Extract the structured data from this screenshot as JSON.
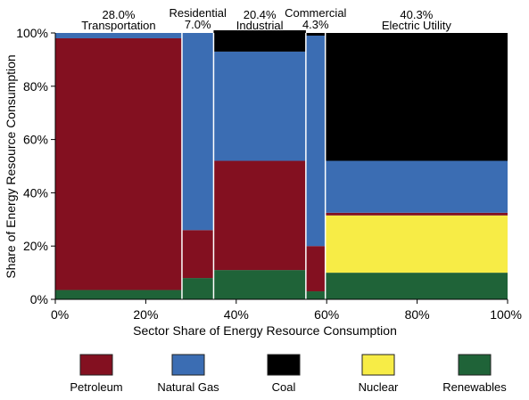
{
  "chart_data": {
    "type": "mosaic",
    "xlabel": "Sector Share of Energy Resource Consumption",
    "ylabel": "Share of Energy Resource Consumption",
    "xlim": [
      0,
      100
    ],
    "ylim": [
      0,
      100
    ],
    "x_ticks": [
      "0%",
      "20%",
      "40%",
      "60%",
      "80%",
      "100%"
    ],
    "y_ticks": [
      "0%",
      "20%",
      "40%",
      "60%",
      "80%",
      "100%"
    ],
    "grid": false,
    "legend_position": "bottom",
    "resources": [
      {
        "name": "Petroleum",
        "color": "#831020"
      },
      {
        "name": "Natural Gas",
        "color": "#3b6db3"
      },
      {
        "name": "Coal",
        "color": "#000000"
      },
      {
        "name": "Nuclear",
        "color": "#f7ec46"
      },
      {
        "name": "Renewables",
        "color": "#1f6338"
      }
    ],
    "sectors": [
      {
        "name": "Transportation",
        "share_label": "28.0%",
        "share": 28.0,
        "label_row": "low",
        "values": {
          "Renewables": 3.5,
          "Nuclear": 0,
          "Petroleum": 94.5,
          "Coal": 0,
          "Natural Gas": 2.0
        }
      },
      {
        "name": "Residential",
        "share_label": "7.0%",
        "share": 7.0,
        "label_row": "high",
        "values": {
          "Renewables": 8,
          "Nuclear": 0,
          "Petroleum": 18,
          "Coal": 0,
          "Natural Gas": 74
        }
      },
      {
        "name": "Industrial",
        "share_label": "20.4%",
        "share": 20.4,
        "label_row": "low",
        "values": {
          "Renewables": 11,
          "Nuclear": 0,
          "Petroleum": 41,
          "Coal": 8,
          "Natural Gas": 41
        }
      },
      {
        "name": "Commercial",
        "share_label": "4.3%",
        "share": 4.3,
        "label_row": "high",
        "values": {
          "Renewables": 3,
          "Nuclear": 0,
          "Petroleum": 17,
          "Coal": 1,
          "Natural Gas": 79
        }
      },
      {
        "name": "Electric Utility",
        "share_label": "40.3%",
        "share": 40.3,
        "label_row": "low",
        "values": {
          "Renewables": 10,
          "Nuclear": 21.5,
          "Petroleum": 1,
          "Natural Gas": 19.5,
          "Coal": 48
        }
      }
    ]
  }
}
